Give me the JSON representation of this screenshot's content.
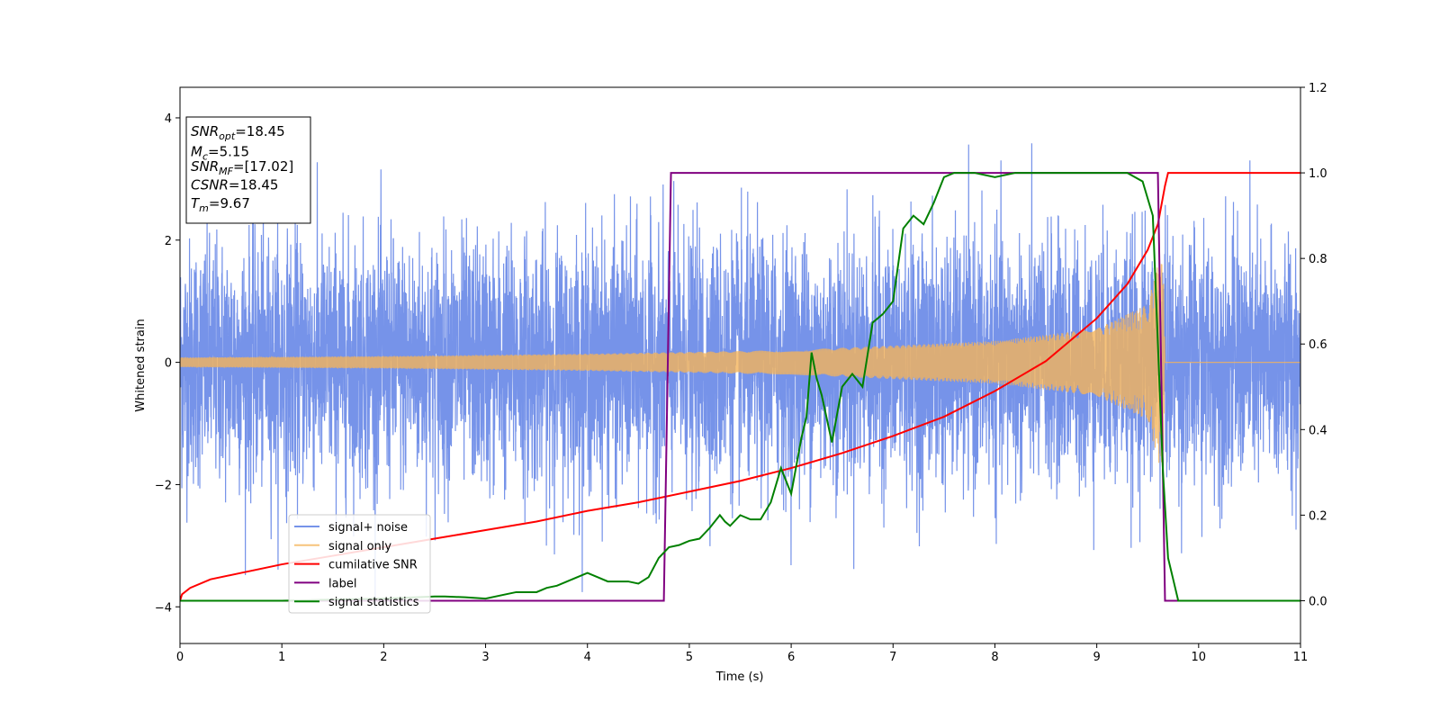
{
  "chart_data": {
    "type": "line",
    "xlabel": "Time (s)",
    "ylabel": "Whitened strain",
    "xlim": [
      0,
      11
    ],
    "ylim": [
      -4.6,
      4.5
    ],
    "y2lim": [
      -0.1,
      1.2
    ],
    "xticks": [
      0,
      1,
      2,
      3,
      4,
      5,
      6,
      7,
      8,
      9,
      10,
      11
    ],
    "yticks": [
      -4,
      -2,
      0,
      2,
      4
    ],
    "y2ticks": [
      "0.0",
      "0.2",
      "0.4",
      "0.6",
      "0.8",
      "1.0",
      "1.2"
    ],
    "grid": false,
    "legend_position": "lower-left",
    "colors": {
      "signal_noise": "#6f8de8",
      "signal_only": "#f5b45a",
      "cumulative_snr": "#ff0000",
      "label": "#800080",
      "signal_statistics": "#008000"
    },
    "info_box": {
      "lines": [
        {
          "sym": "SNR",
          "sub": "opt",
          "val": "=18.45"
        },
        {
          "sym": "M",
          "sub": "c",
          "val": "=5.15"
        },
        {
          "sym": "SNR",
          "sub": "MF",
          "val": "=[17.02]"
        },
        {
          "sym": "CSNR",
          "sub": "",
          "val": "=18.45"
        },
        {
          "sym": "T",
          "sub": "m",
          "val": "=9.67"
        }
      ]
    },
    "series": [
      {
        "name": "signal+ noise",
        "axis": "left",
        "kind": "noise",
        "x_range": [
          0,
          11
        ],
        "std": 1.0,
        "min": -4.15,
        "max": 3.95
      },
      {
        "name": "signal only",
        "axis": "left",
        "kind": "chirp",
        "x_range": [
          0,
          9.67
        ],
        "envelope": [
          [
            0,
            0.08
          ],
          [
            2,
            0.1
          ],
          [
            4,
            0.14
          ],
          [
            6,
            0.2
          ],
          [
            8,
            0.35
          ],
          [
            9,
            0.55
          ],
          [
            9.5,
            0.95
          ],
          [
            9.65,
            1.9
          ],
          [
            9.67,
            0.0
          ]
        ],
        "after_merger": 0.0
      },
      {
        "name": "cumilative SNR",
        "axis": "right",
        "x": [
          0,
          0.02,
          0.1,
          0.3,
          0.6,
          1,
          1.5,
          2,
          2.5,
          3,
          3.5,
          4,
          4.5,
          5,
          5.5,
          6,
          6.5,
          7,
          7.5,
          8,
          8.5,
          9,
          9.3,
          9.5,
          9.6,
          9.67,
          9.7,
          11
        ],
        "y": [
          0.0,
          0.015,
          0.03,
          0.05,
          0.065,
          0.085,
          0.105,
          0.125,
          0.145,
          0.165,
          0.185,
          0.21,
          0.23,
          0.255,
          0.28,
          0.31,
          0.345,
          0.385,
          0.43,
          0.49,
          0.56,
          0.66,
          0.74,
          0.82,
          0.88,
          0.97,
          1.0,
          1.0
        ]
      },
      {
        "name": "label",
        "axis": "right",
        "x": [
          0,
          4.75,
          4.82,
          9.6,
          9.67,
          11
        ],
        "y": [
          0,
          0,
          1,
          1,
          0,
          0
        ]
      },
      {
        "name": "signal statistics",
        "axis": "right",
        "x": [
          0,
          1,
          2,
          2.5,
          2.6,
          2.8,
          3.0,
          3.2,
          3.3,
          3.5,
          3.6,
          3.7,
          3.8,
          3.9,
          4.0,
          4.1,
          4.2,
          4.3,
          4.4,
          4.5,
          4.6,
          4.7,
          4.8,
          4.9,
          5.0,
          5.1,
          5.2,
          5.3,
          5.35,
          5.4,
          5.5,
          5.6,
          5.7,
          5.8,
          5.9,
          6.0,
          6.1,
          6.15,
          6.2,
          6.25,
          6.3,
          6.4,
          6.5,
          6.6,
          6.7,
          6.8,
          6.9,
          7.0,
          7.1,
          7.2,
          7.3,
          7.4,
          7.5,
          7.6,
          7.8,
          8.0,
          8.2,
          8.5,
          9.0,
          9.3,
          9.45,
          9.55,
          9.6,
          9.65,
          9.7,
          9.75,
          9.8,
          9.9,
          10.0,
          11
        ],
        "y": [
          0,
          0,
          0.005,
          0.01,
          0.01,
          0.008,
          0.005,
          0.015,
          0.02,
          0.02,
          0.03,
          0.035,
          0.045,
          0.055,
          0.065,
          0.055,
          0.045,
          0.045,
          0.045,
          0.04,
          0.055,
          0.1,
          0.125,
          0.13,
          0.14,
          0.145,
          0.17,
          0.2,
          0.185,
          0.175,
          0.2,
          0.19,
          0.19,
          0.23,
          0.31,
          0.25,
          0.38,
          0.43,
          0.58,
          0.52,
          0.48,
          0.37,
          0.5,
          0.53,
          0.5,
          0.65,
          0.67,
          0.7,
          0.87,
          0.9,
          0.88,
          0.93,
          0.99,
          1.0,
          1.0,
          0.99,
          1.0,
          1.0,
          1.0,
          1.0,
          0.98,
          0.9,
          0.6,
          0.3,
          0.1,
          0.05,
          0.0,
          0.0,
          0.0,
          0.0
        ]
      }
    ]
  }
}
